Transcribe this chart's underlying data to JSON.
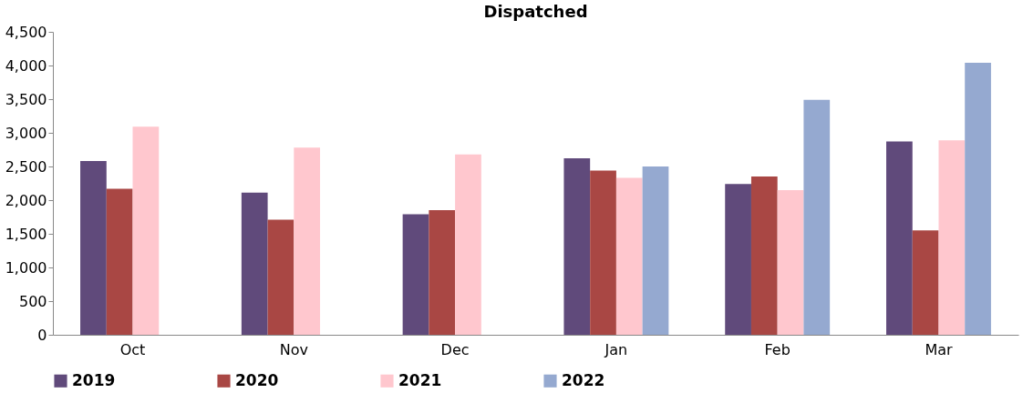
{
  "chart_data": {
    "type": "bar",
    "title": "Dispatched",
    "categories": [
      "Oct",
      "Nov",
      "Dec",
      "Jan",
      "Feb",
      "Mar"
    ],
    "series": [
      {
        "name": "2019",
        "color": "#604a7b",
        "values": [
          2580,
          2110,
          1790,
          2620,
          2240,
          2870
        ]
      },
      {
        "name": "2020",
        "color": "#a94744",
        "values": [
          2170,
          1710,
          1850,
          2440,
          2350,
          1550
        ]
      },
      {
        "name": "2021",
        "color": "#ffc7ce",
        "values": [
          3090,
          2780,
          2680,
          2330,
          2150,
          2890
        ]
      },
      {
        "name": "2022",
        "color": "#95a9d0",
        "values": [
          null,
          null,
          null,
          2500,
          3490,
          4040
        ]
      }
    ],
    "ylim": [
      0,
      4500
    ],
    "yticks": [
      0,
      {
        "value": 500,
        "label": "500"
      },
      {
        "value": 1000,
        "label": "1,000"
      },
      {
        "value": 1500,
        "label": "1,500"
      },
      {
        "value": 2000,
        "label": "2,000"
      },
      {
        "value": 2500,
        "label": "2,500"
      },
      {
        "value": 3000,
        "label": "3,000"
      },
      {
        "value": 3500,
        "label": "3,500"
      },
      {
        "value": 4000,
        "label": "4,000"
      },
      {
        "value": 4500,
        "label": "4,500"
      }
    ],
    "grid": false,
    "legend": "bottom"
  }
}
